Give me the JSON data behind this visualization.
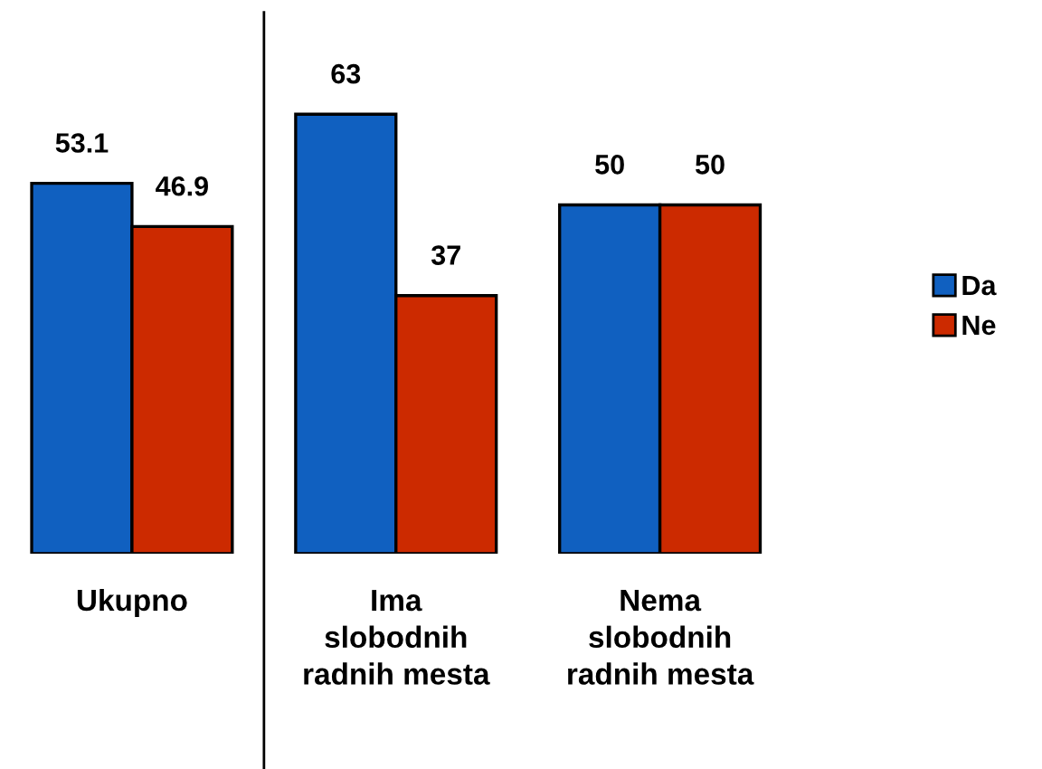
{
  "chart_data": {
    "type": "bar",
    "categories": [
      "Ukupno",
      "Ima\nslobodnih\nradnih mesta",
      "Nema\nslobodnih\nradnih mesta"
    ],
    "series": [
      {
        "name": "Da",
        "color": "#1060c0",
        "values": [
          53.1,
          63,
          50
        ]
      },
      {
        "name": "Ne",
        "color": "#cc2a00",
        "values": [
          46.9,
          37,
          50
        ]
      }
    ],
    "data_labels": true,
    "legend": "right",
    "grid": false
  }
}
